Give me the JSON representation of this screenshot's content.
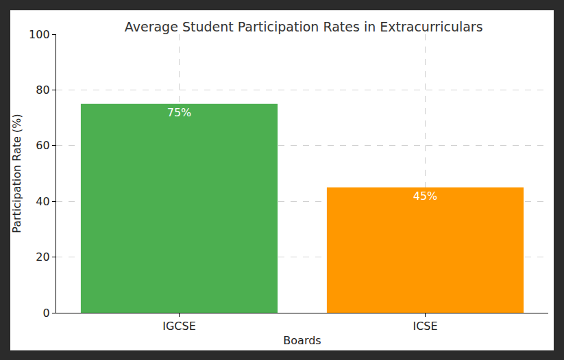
{
  "chart_data": {
    "type": "bar",
    "title": "Average Student Participation Rates in Extracurriculars",
    "x_label": "Boards",
    "y_label": "Participation Rate (%)",
    "categories": [
      "IGCSE",
      "ICSE"
    ],
    "values": [
      75,
      45
    ],
    "value_labels": [
      "75%",
      "45%"
    ],
    "colors": [
      "#4caf50",
      "#ff9800"
    ],
    "data_labels": true,
    "ylim": [
      0,
      100
    ],
    "yticks": [
      0,
      20,
      40,
      60,
      80,
      100
    ],
    "grid": true
  }
}
